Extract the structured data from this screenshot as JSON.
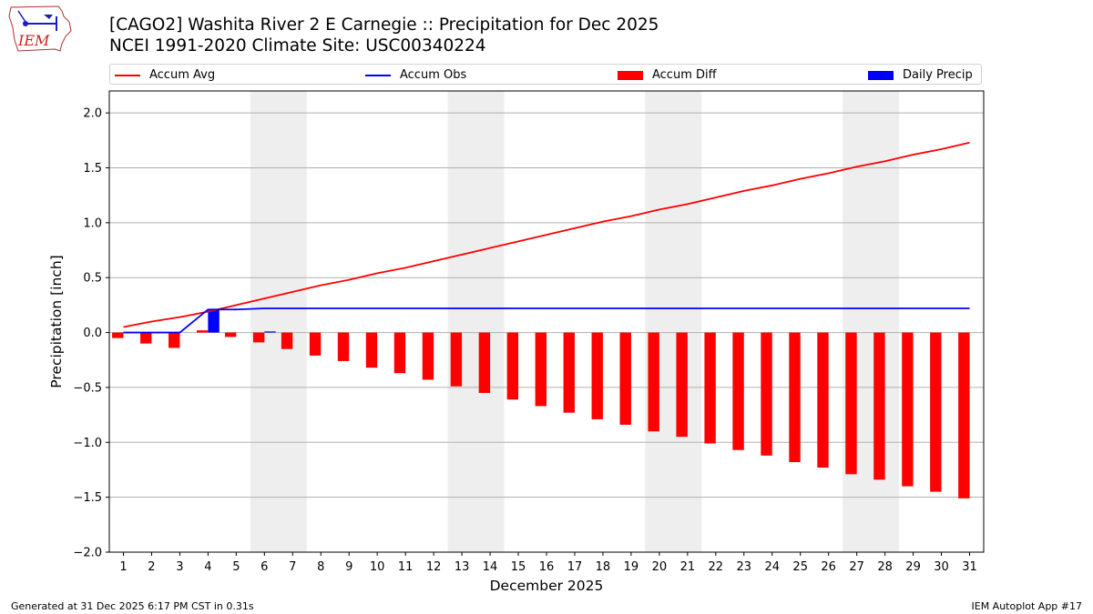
{
  "header": {
    "logo_text": "IEM",
    "title_line1": "[CAGO2] Washita River 2 E Carnegie :: Precipitation for Dec 2025",
    "title_line2": "NCEI 1991-2020 Climate Site: USC00340224"
  },
  "legend": [
    {
      "label": "Accum Avg",
      "color": "#ff0000",
      "kind": "line"
    },
    {
      "label": "Accum Obs",
      "color": "#0000ff",
      "kind": "line"
    },
    {
      "label": "Accum Diff",
      "color": "#ff0000",
      "kind": "bar"
    },
    {
      "label": "Daily Precip",
      "color": "#0000ff",
      "kind": "bar"
    }
  ],
  "footer": {
    "left": "Generated at 31 Dec 2025 6:17 PM CST in 0.31s",
    "right": "IEM Autoplot App #17"
  },
  "chart_data": {
    "type": "bar",
    "title": "[CAGO2] Washita River 2 E Carnegie :: Precipitation for Dec 2025",
    "subtitle": "NCEI 1991-2020 Climate Site: USC00340224",
    "xlabel": "December 2025",
    "ylabel": "Precipitation [inch]",
    "ylim": [
      -2.0,
      2.2
    ],
    "yticks": [
      2.0,
      1.5,
      1.0,
      0.5,
      0.0,
      -0.5,
      -1.0,
      -1.5,
      -2.0
    ],
    "ytick_labels": [
      "2.0",
      "1.5",
      "1.0",
      "0.5",
      "0.0",
      "−0.5",
      "−1.0",
      "−1.5",
      "−2.0"
    ],
    "grid": "horizontal",
    "legend_position": "top",
    "weekend_shading": [
      [
        6,
        7
      ],
      [
        13,
        14
      ],
      [
        20,
        21
      ],
      [
        27,
        28
      ]
    ],
    "x": [
      1,
      2,
      3,
      4,
      5,
      6,
      7,
      8,
      9,
      10,
      11,
      12,
      13,
      14,
      15,
      16,
      17,
      18,
      19,
      20,
      21,
      22,
      23,
      24,
      25,
      26,
      27,
      28,
      29,
      30,
      31
    ],
    "series": [
      {
        "name": "Accum Avg",
        "type": "line",
        "color": "#ff0000",
        "values": [
          0.05,
          0.1,
          0.14,
          0.19,
          0.25,
          0.31,
          0.37,
          0.43,
          0.48,
          0.54,
          0.59,
          0.65,
          0.71,
          0.77,
          0.83,
          0.89,
          0.95,
          1.01,
          1.06,
          1.12,
          1.17,
          1.23,
          1.29,
          1.34,
          1.4,
          1.45,
          1.51,
          1.56,
          1.62,
          1.67,
          1.73
        ]
      },
      {
        "name": "Accum Obs",
        "type": "line",
        "color": "#0000ff",
        "values": [
          0.0,
          0.0,
          0.0,
          0.21,
          0.21,
          0.22,
          0.22,
          0.22,
          0.22,
          0.22,
          0.22,
          0.22,
          0.22,
          0.22,
          0.22,
          0.22,
          0.22,
          0.22,
          0.22,
          0.22,
          0.22,
          0.22,
          0.22,
          0.22,
          0.22,
          0.22,
          0.22,
          0.22,
          0.22,
          0.22,
          0.22
        ]
      },
      {
        "name": "Accum Diff",
        "type": "bar",
        "color": "#ff0000",
        "values": [
          -0.05,
          -0.1,
          -0.14,
          0.02,
          -0.04,
          -0.09,
          -0.15,
          -0.21,
          -0.26,
          -0.32,
          -0.37,
          -0.43,
          -0.49,
          -0.55,
          -0.61,
          -0.67,
          -0.73,
          -0.79,
          -0.84,
          -0.9,
          -0.95,
          -1.01,
          -1.07,
          -1.12,
          -1.18,
          -1.23,
          -1.29,
          -1.34,
          -1.4,
          -1.45,
          -1.51
        ]
      },
      {
        "name": "Daily Precip",
        "type": "bar",
        "color": "#0000ff",
        "values": [
          0.0,
          0.0,
          0.0,
          0.21,
          0.0,
          0.01,
          0.0,
          0.0,
          0.0,
          0.0,
          0.0,
          0.0,
          0.0,
          0.0,
          0.0,
          0.0,
          0.0,
          0.0,
          0.0,
          0.0,
          0.0,
          0.0,
          0.0,
          0.0,
          0.0,
          0.0,
          0.0,
          0.0,
          0.0,
          0.0,
          0.0
        ]
      }
    ]
  }
}
